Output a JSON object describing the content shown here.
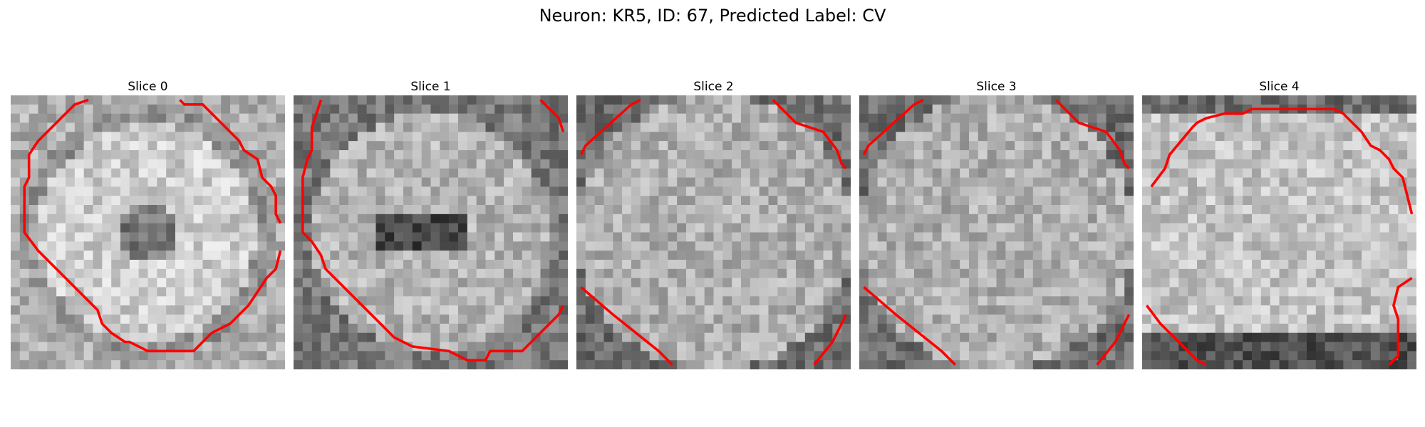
{
  "figure": {
    "title": "Neuron: KR5, ID: 67, Predicted Label: CV"
  },
  "colors": {
    "contour": "#ff0000",
    "colormap": "grayscale"
  },
  "slices": [
    {
      "title": "Slice 0"
    },
    {
      "title": "Slice 1"
    },
    {
      "title": "Slice 2"
    },
    {
      "title": "Slice 3"
    },
    {
      "title": "Slice 4"
    }
  ]
}
